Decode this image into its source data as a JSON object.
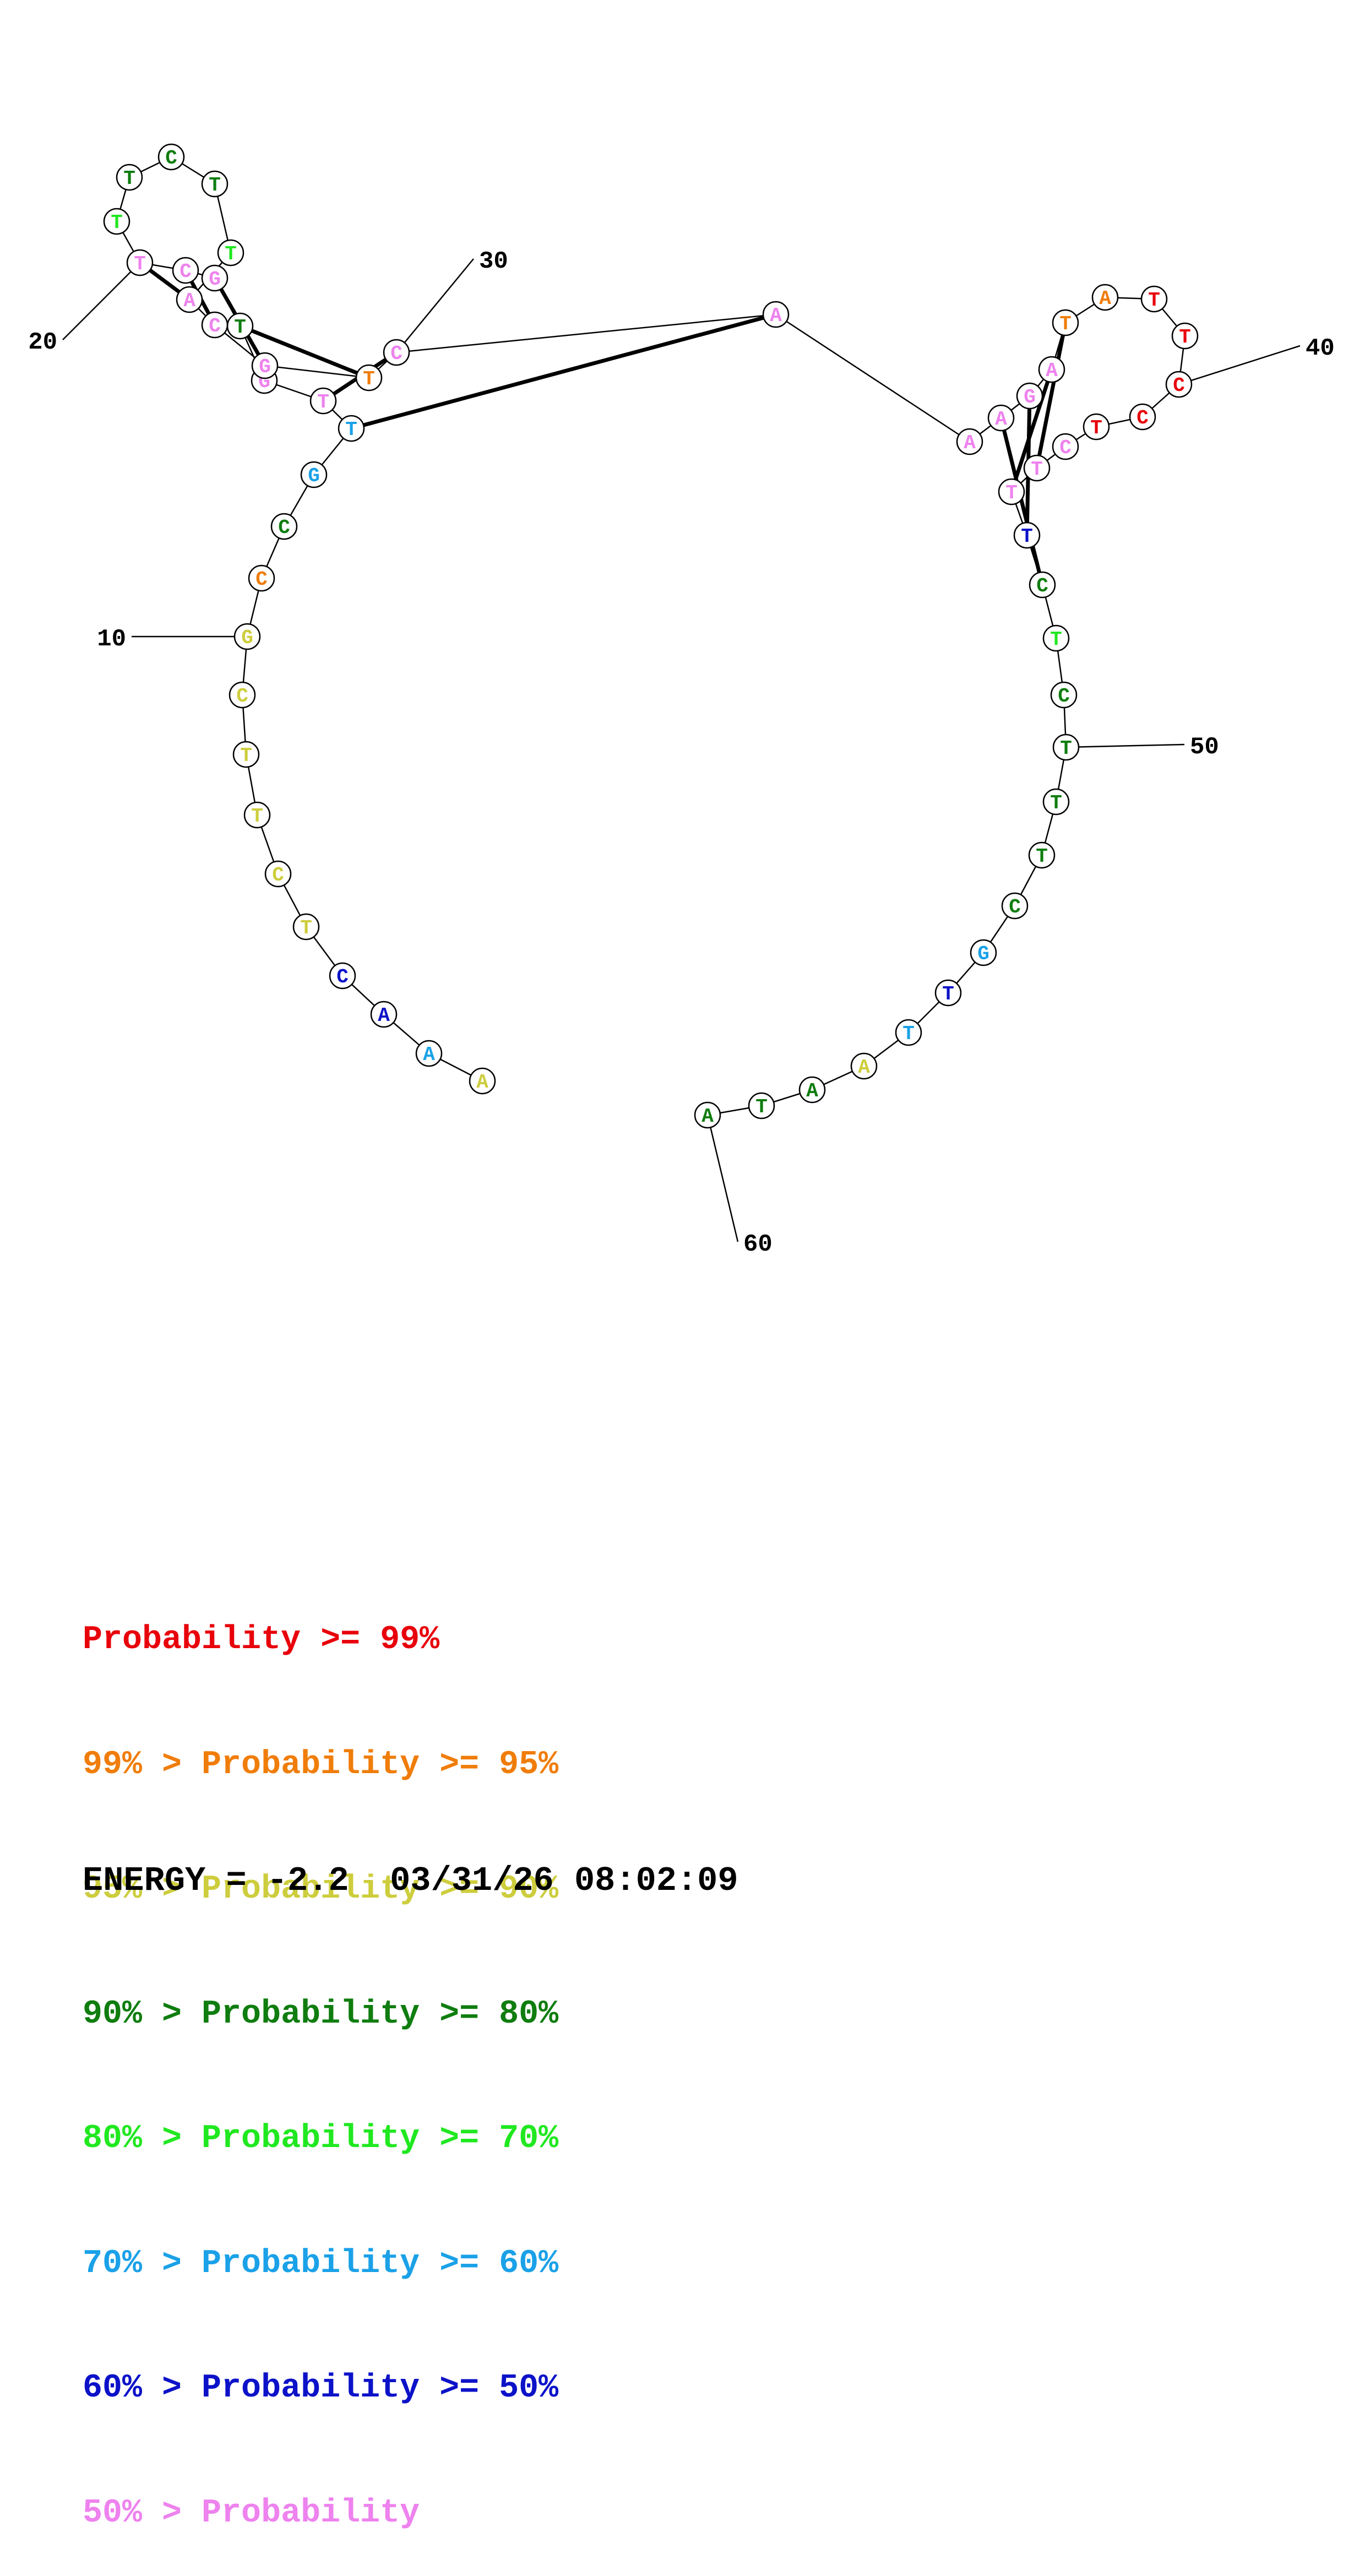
{
  "structure": {
    "sequence": [
      "A",
      "A",
      "A",
      "C",
      "T",
      "C",
      "T",
      "T",
      "C",
      "G",
      "C",
      "C",
      "G",
      "T",
      "T",
      "G",
      "T",
      "G",
      "C",
      "T",
      "T",
      "T",
      "C",
      "T",
      "T",
      "A",
      "C",
      "G",
      "T",
      "C",
      "A",
      "A",
      "A",
      "G",
      "A",
      "T",
      "A",
      "T",
      "T",
      "C",
      "C",
      "T",
      "C",
      "T",
      "T",
      "T",
      "C",
      "T",
      "C",
      "T",
      "T",
      "T",
      "C",
      "G",
      "T",
      "T",
      "A",
      "A",
      "T",
      "A"
    ],
    "probability_class": [
      "yellow",
      "sky",
      "blue",
      "blue",
      "yellow",
      "yellow",
      "yellow",
      "yellow",
      "yellow",
      "yellow",
      "orange",
      "darkgreen",
      "sky",
      "sky",
      "pink",
      "pink",
      "darkgreen",
      "pink",
      "pink",
      "pink",
      "green",
      "darkgreen",
      "darkgreen",
      "darkgreen",
      "green",
      "pink",
      "pink",
      "pink",
      "orange",
      "pink",
      "pink",
      "pink",
      "pink",
      "pink",
      "pink",
      "orange",
      "orange",
      "red",
      "red",
      "red",
      "red",
      "red",
      "pink",
      "pink",
      "pink",
      "blue",
      "darkgreen",
      "green",
      "darkgreen",
      "darkgreen",
      "darkgreen",
      "darkgreen",
      "darkgreen",
      "sky",
      "blue",
      "sky",
      "yellow",
      "darkgreen",
      "darkgreen",
      "darkgreen"
    ],
    "pairs": [
      [
        14,
        31
      ],
      [
        15,
        30
      ],
      [
        17,
        29
      ],
      [
        18,
        28
      ],
      [
        19,
        27
      ],
      [
        20,
        26
      ],
      [
        33,
        47
      ],
      [
        34,
        46
      ],
      [
        35,
        45
      ],
      [
        36,
        44
      ]
    ],
    "position_labels": [
      {
        "index": 10,
        "text": "10"
      },
      {
        "index": 20,
        "text": "20"
      },
      {
        "index": 30,
        "text": "30"
      },
      {
        "index": 40,
        "text": "40"
      },
      {
        "index": 50,
        "text": "50"
      },
      {
        "index": 60,
        "text": "60"
      }
    ]
  },
  "colors": {
    "red": "#e8000b",
    "orange": "#f07d0a",
    "yellow": "#cdcd3d",
    "darkgreen": "#0f7d0f",
    "green": "#20e820",
    "sky": "#1aa1e8",
    "blue": "#0c12c8",
    "pink": "#ee82ee"
  },
  "legend": [
    {
      "prefix": "",
      "text": "Probability >= 99%",
      "color_key": "red"
    },
    {
      "prefix": "99% > ",
      "text": "Probability >= 95%",
      "color_key": "orange"
    },
    {
      "prefix": "95% > ",
      "text": "Probability >= 90%",
      "color_key": "yellow"
    },
    {
      "prefix": "90% > ",
      "text": "Probability >= 80%",
      "color_key": "darkgreen"
    },
    {
      "prefix": "80% > ",
      "text": "Probability >= 70%",
      "color_key": "green"
    },
    {
      "prefix": "70% > ",
      "text": "Probability >= 60%",
      "color_key": "sky"
    },
    {
      "prefix": "60% > ",
      "text": "Probability >= 50%",
      "color_key": "blue"
    },
    {
      "prefix": "50% > ",
      "text": "Probability",
      "color_key": "pink"
    }
  ],
  "footer": {
    "energy": "ENERGY = -2.2  03/31/26 08:02:09"
  }
}
